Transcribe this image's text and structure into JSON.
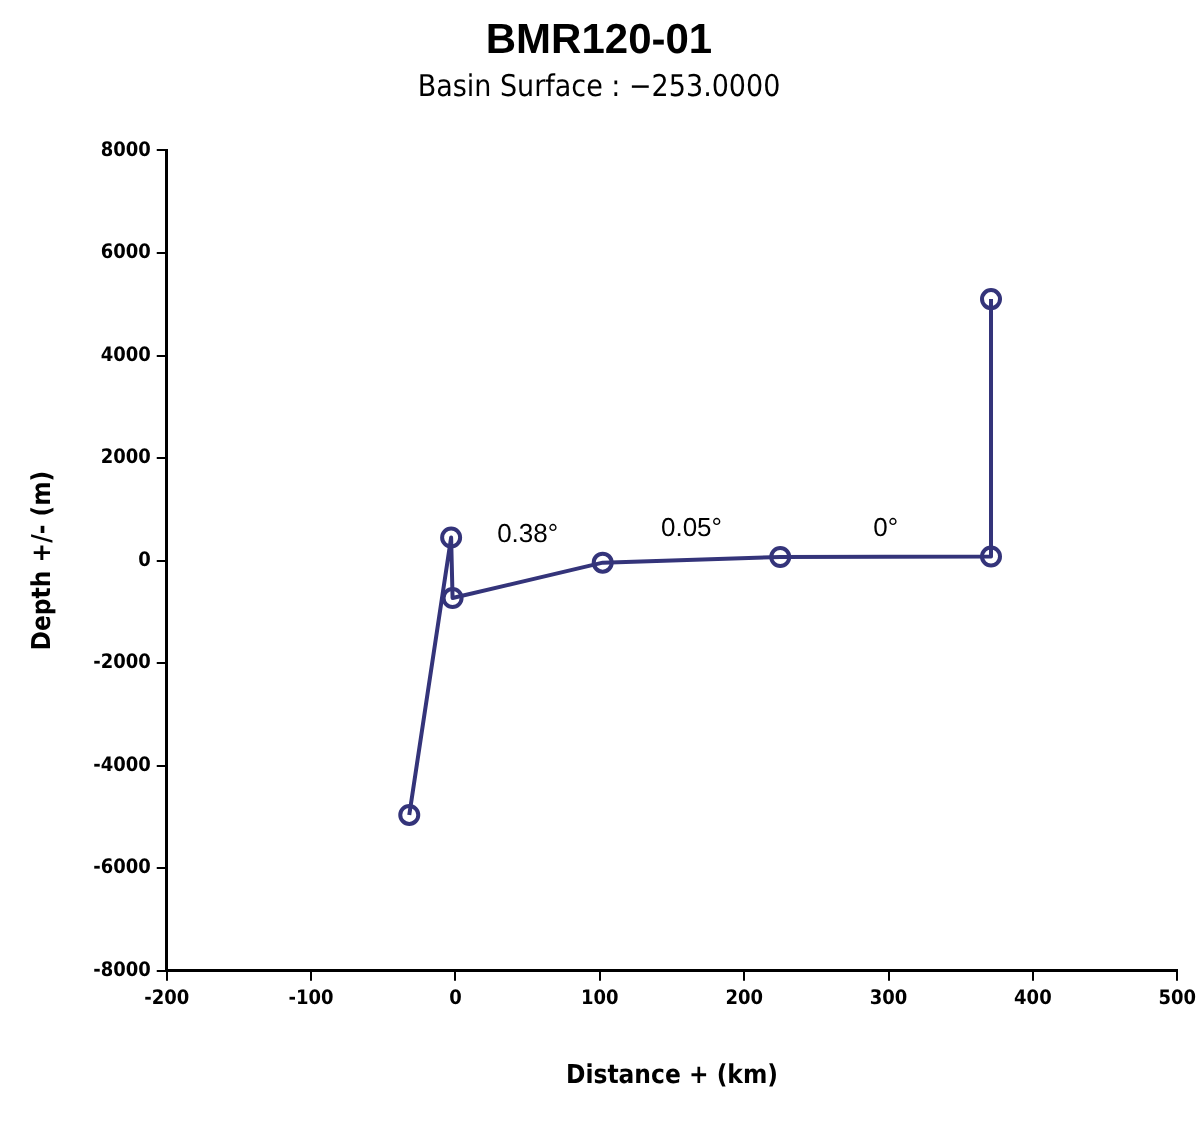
{
  "chart_data": {
    "type": "line",
    "title": "BMR120-01",
    "subtitle": "Basin Surface : −253.0000",
    "xlabel": "Distance + (km)",
    "ylabel": "Depth +/- (m)",
    "x": [
      -32,
      -3,
      -2,
      102,
      225,
      371,
      371
    ],
    "series": [
      {
        "color": "#34347a",
        "values": [
          -4960,
          450,
          -730,
          -40,
          70,
          80,
          5100
        ]
      }
    ],
    "xlim": [
      -200,
      500
    ],
    "xticks": [
      -200,
      -100,
      0,
      100,
      200,
      300,
      400,
      500
    ],
    "ylim": [
      -8000,
      8000
    ],
    "yticks": [
      -8000,
      -6000,
      -4000,
      -2000,
      0,
      2000,
      4000,
      6000,
      8000
    ],
    "grid": false,
    "legend": false,
    "marker": "circle",
    "line_style": "solid",
    "annotations": [
      "0.38°",
      "0.05°",
      "0°"
    ]
  }
}
